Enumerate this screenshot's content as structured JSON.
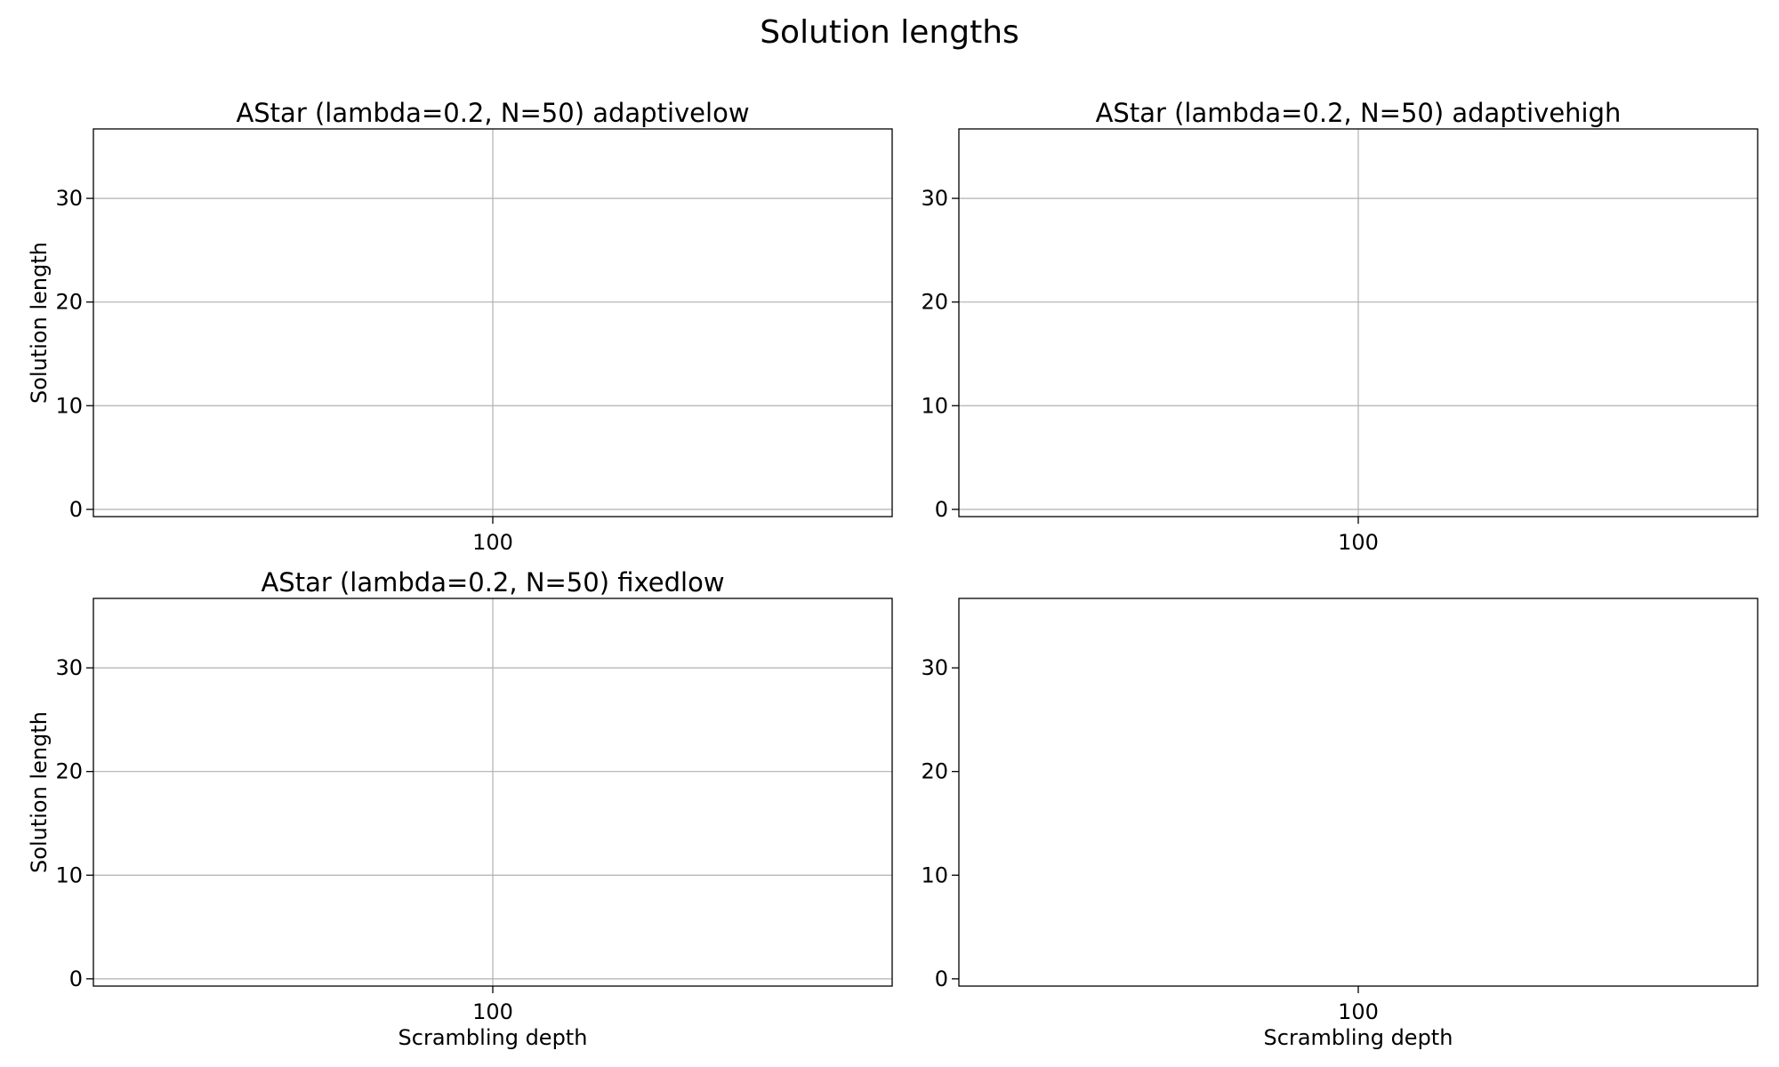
{
  "figure": {
    "title": "Solution lengths"
  },
  "chart_data": [
    {
      "type": "scatter",
      "title": "AStar (lambda=0.2, N=50) adaptivelow",
      "xlabel": "",
      "ylabel": "Solution length",
      "x_ticks": [
        100
      ],
      "y_ticks": [
        0,
        10,
        20,
        30
      ],
      "xlim": [
        50,
        150
      ],
      "ylim": [
        -0.7,
        36.7
      ],
      "grid": true,
      "series": []
    },
    {
      "type": "scatter",
      "title": "AStar (lambda=0.2, N=50) adaptivehigh",
      "xlabel": "",
      "ylabel": "",
      "x_ticks": [
        100
      ],
      "y_ticks": [
        0,
        10,
        20,
        30
      ],
      "xlim": [
        50,
        150
      ],
      "ylim": [
        -0.7,
        36.7
      ],
      "grid": true,
      "series": []
    },
    {
      "type": "scatter",
      "title": "AStar (lambda=0.2, N=50) fixedlow",
      "xlabel": "Scrambling depth",
      "ylabel": "Solution length",
      "x_ticks": [
        100
      ],
      "y_ticks": [
        0,
        10,
        20,
        30
      ],
      "xlim": [
        50,
        150
      ],
      "ylim": [
        -0.7,
        36.7
      ],
      "grid": true,
      "series": []
    },
    {
      "type": "scatter",
      "title": "",
      "xlabel": "Scrambling depth",
      "ylabel": "",
      "x_ticks": [
        100
      ],
      "y_ticks": [
        0,
        10,
        20,
        30
      ],
      "xlim": [
        50,
        150
      ],
      "ylim": [
        -0.7,
        36.7
      ],
      "grid": false,
      "series": []
    }
  ]
}
